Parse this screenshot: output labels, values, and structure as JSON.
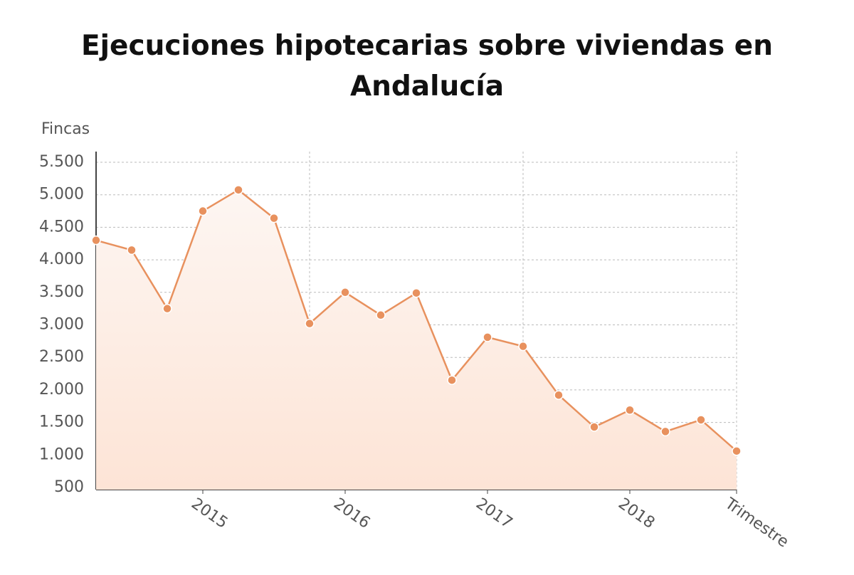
{
  "chart_data": {
    "type": "line",
    "title": "Ejecuciones hipotecarias sobre viviendas en Andalucía",
    "y_label": "Fincas",
    "categories": [
      null,
      null,
      null,
      "2015",
      null,
      null,
      null,
      "2016",
      null,
      null,
      null,
      "2017",
      null,
      null,
      null,
      "2018",
      null,
      null,
      "Trimestre"
    ],
    "series": [
      {
        "name": "Fincas",
        "color": "#e8915e",
        "values": [
          4300,
          4150,
          3250,
          4750,
          5075,
          4640,
          3020,
          3500,
          3150,
          3490,
          2150,
          2810,
          2670,
          1920,
          1430,
          1690,
          1360,
          1540,
          1060
        ]
      }
    ],
    "ylim": [
      500,
      5500
    ],
    "yticks": [
      {
        "value": 500,
        "label": "500"
      },
      {
        "value": 1000,
        "label": "1.000"
      },
      {
        "value": 1500,
        "label": "1.500"
      },
      {
        "value": 2000,
        "label": "2.000"
      },
      {
        "value": 2500,
        "label": "2.500"
      },
      {
        "value": 3000,
        "label": "3.000"
      },
      {
        "value": 3500,
        "label": "3.500"
      },
      {
        "value": 4000,
        "label": "4.000"
      },
      {
        "value": 4500,
        "label": "4.500"
      },
      {
        "value": 5000,
        "label": "5.000"
      },
      {
        "value": 5500,
        "label": "5.500"
      }
    ],
    "grid": true
  }
}
